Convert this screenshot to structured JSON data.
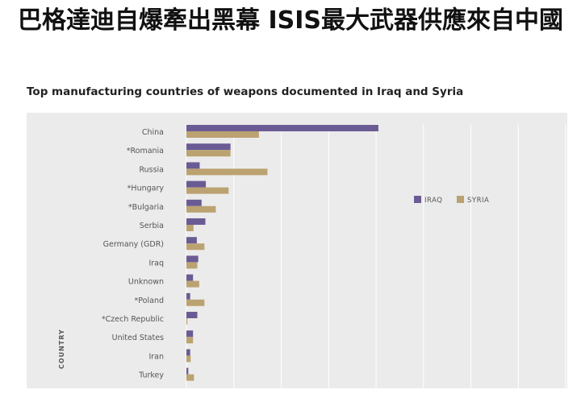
{
  "headline": "巴格達迪自爆牽出黑幕 ISIS最大武器供應來自中國",
  "colors": {
    "iraq": "#6b5b94",
    "syria": "#bba271",
    "panel": "#ebebeb",
    "grid": "#ffffff",
    "text": "#555555"
  },
  "chart_data": {
    "type": "bar",
    "orientation": "horizontal",
    "title": "Top manufacturing countries of weapons documented in Iraq and Syria",
    "ylabel": "COUNTRY",
    "xlabel": "",
    "legend_position": "right",
    "categories": [
      "China",
      "*Romania",
      "Russia",
      "*Hungary",
      "*Bulgaria",
      "Serbia",
      "Germany (GDR)",
      "Iraq",
      "Unknown",
      "*Poland",
      "*Czech Republic",
      "United States",
      "Iran",
      "Turkey"
    ],
    "series": [
      {
        "name": "IRAQ",
        "values": [
          40.5,
          9.3,
          2.8,
          4.1,
          3.2,
          4.0,
          2.2,
          2.5,
          1.4,
          0.8,
          2.3,
          1.4,
          0.8,
          0.4
        ]
      },
      {
        "name": "SYRIA",
        "values": [
          15.3,
          9.3,
          17.1,
          8.9,
          6.2,
          1.5,
          3.8,
          2.3,
          2.7,
          3.8,
          0.2,
          1.4,
          0.9,
          1.6
        ]
      }
    ],
    "xlim": [
      0,
      80
    ],
    "grid": true
  }
}
